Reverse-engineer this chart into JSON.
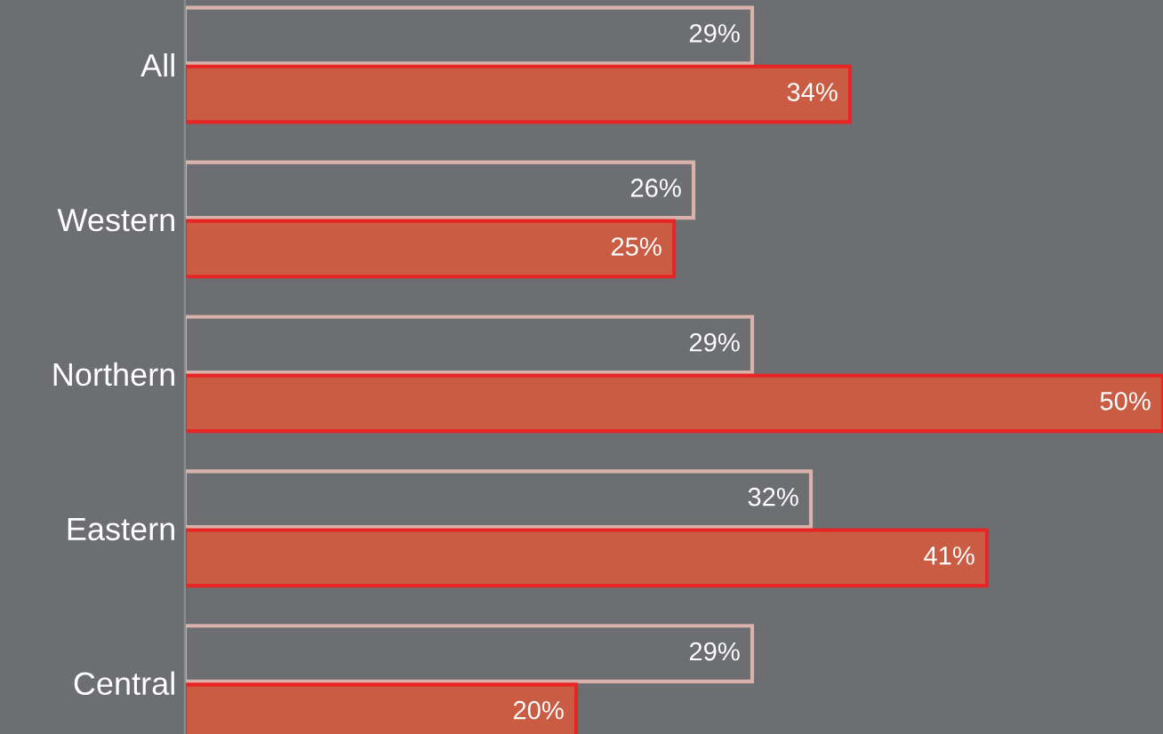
{
  "chart_data": {
    "type": "bar",
    "orientation": "horizontal",
    "categories": [
      "All",
      "Western",
      "Northern",
      "Eastern",
      "Central"
    ],
    "series": [
      {
        "color": "#d9b3ab",
        "values": [
          29,
          26,
          29,
          32,
          29
        ],
        "value_labels": [
          "29%",
          "26%",
          "29%",
          "32%",
          "29%"
        ]
      },
      {
        "color": "#c95c42",
        "values": [
          34,
          25,
          50,
          41,
          20
        ],
        "value_labels": [
          "34%",
          "25%",
          "50%",
          "41%",
          "20%"
        ]
      }
    ],
    "tick_labels": "y"
  }
}
